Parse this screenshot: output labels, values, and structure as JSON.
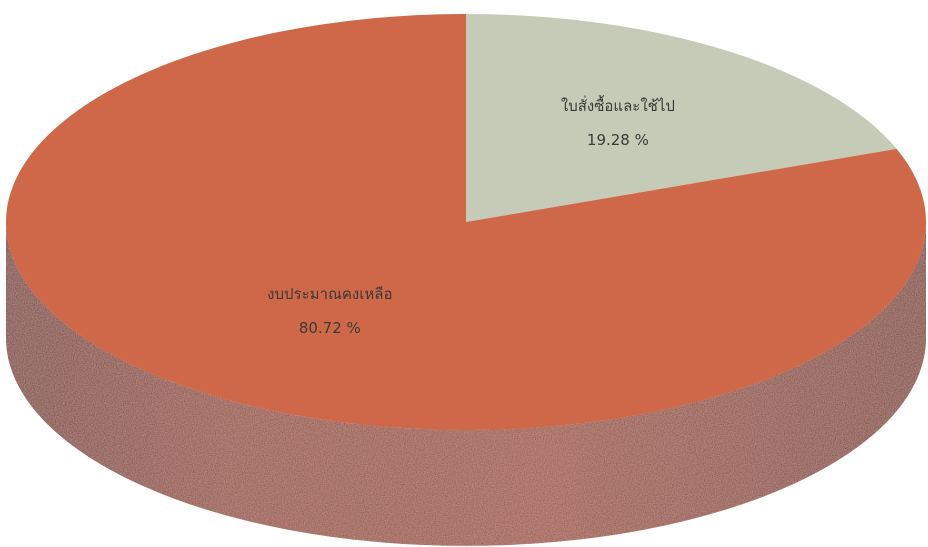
{
  "chart_data": {
    "type": "pie",
    "title": "",
    "style": "3d",
    "categories": [
      "ใบสั่งซื้อและใช้ไป",
      "งบประมาณคงเหลือ"
    ],
    "values": [
      19.28,
      80.72
    ],
    "labels": [
      {
        "name": "ใบสั่งซื้อและใช้ไป",
        "value_text": "19.28 %"
      },
      {
        "name": "งบประมาณคงเหลือ",
        "value_text": "80.72 %"
      }
    ],
    "colors": {
      "slices": [
        "#c5cbb6",
        "#cf6848"
      ],
      "edges": [
        "#8e9482",
        "#a5482d"
      ]
    },
    "legend": "none"
  }
}
